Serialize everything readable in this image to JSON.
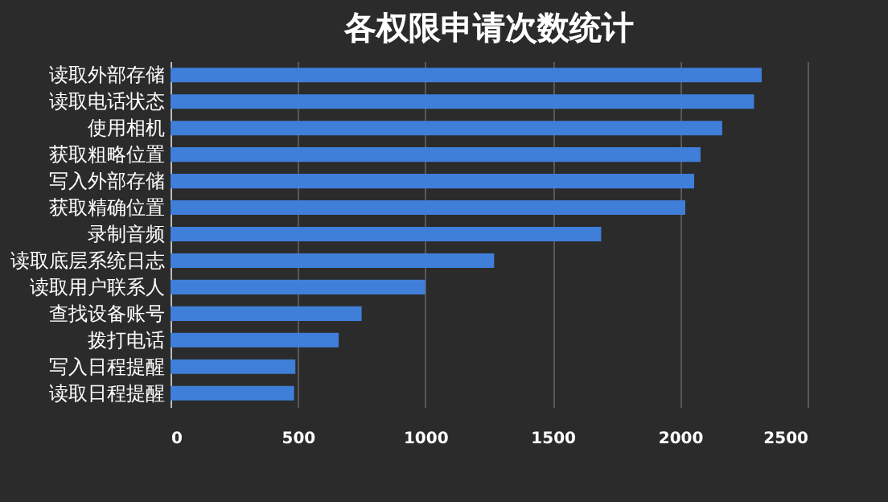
{
  "chart_data": {
    "type": "bar",
    "orientation": "horizontal",
    "title": "各权限申请次数统计",
    "categories": [
      "读取外部存储",
      "读取电话状态",
      "使用相机",
      "获取粗略位置",
      "写入外部存储",
      "获取精确位置",
      "录制音频",
      "读取底层系统日志",
      "读取用户联系人",
      "查找设备账号",
      "拨打电话",
      "写入日程提醒",
      "读取日程提醒"
    ],
    "values": [
      2320,
      2290,
      2165,
      2080,
      2055,
      2020,
      1690,
      1270,
      1000,
      750,
      660,
      490,
      485
    ],
    "color": "#3f7fd9",
    "xlim": [
      0,
      2500
    ],
    "xticks": [
      0,
      500,
      1000,
      1500,
      2000,
      2500
    ],
    "grid": "x"
  }
}
